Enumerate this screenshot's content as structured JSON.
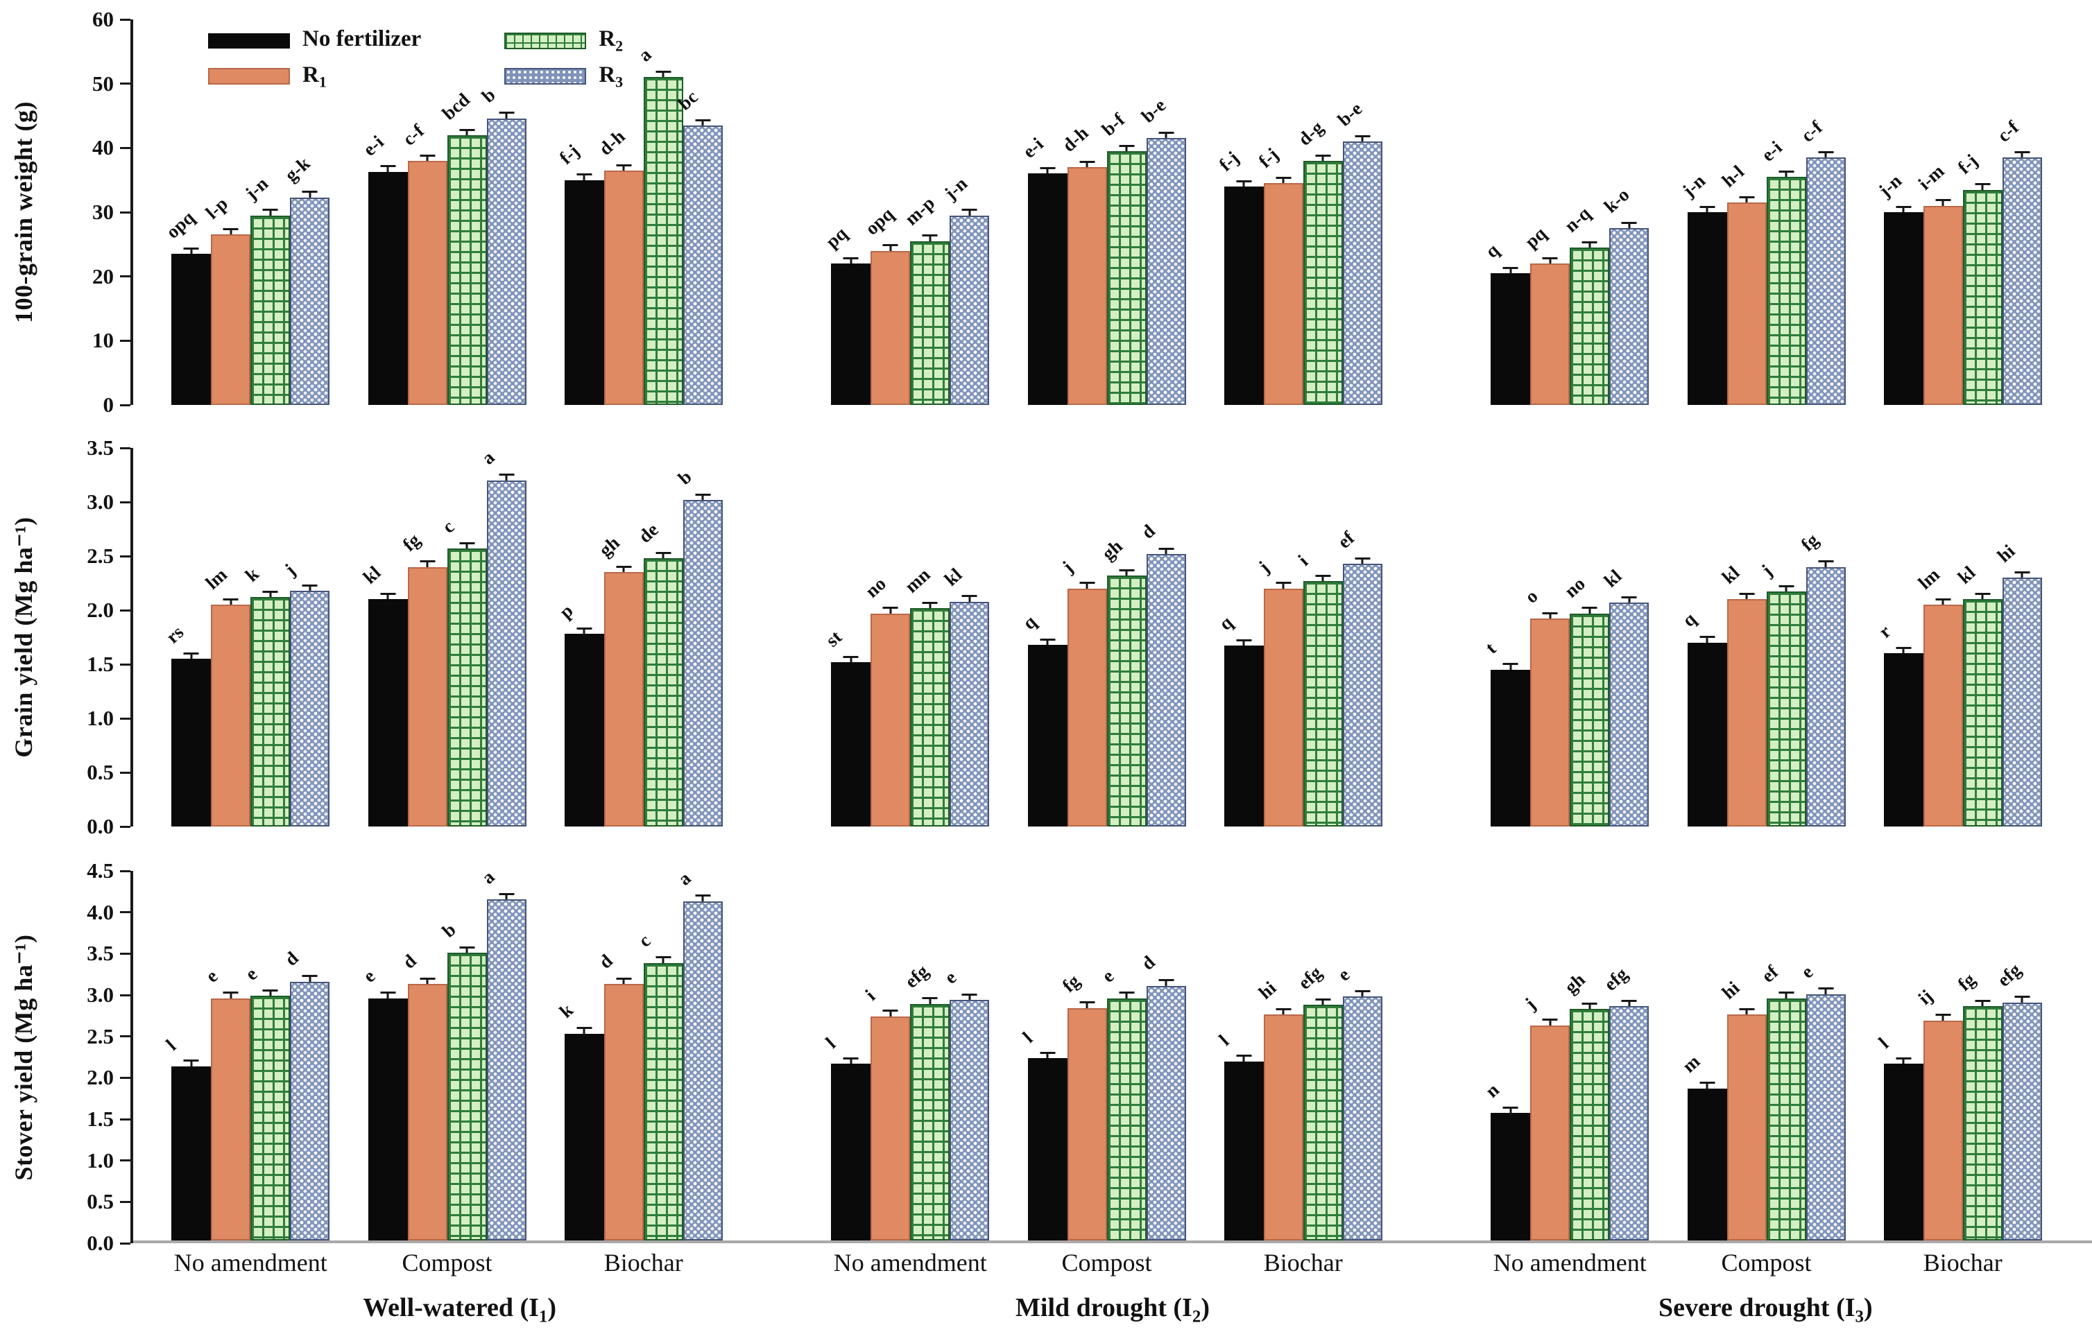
{
  "colors": {
    "black": "#0a0a0a",
    "salmon": "#e08a63",
    "salmon_border": "#b9684a",
    "green_fill": "#d4efc3",
    "green_line": "#2f7d3b",
    "green_border": "#1f5c2a",
    "blue_fill": "#8093ba",
    "blue_border": "#46557a",
    "axis": "#1a1a1a",
    "baseline": "#a9a9a9"
  },
  "legend": {
    "items": [
      {
        "base": "No fertilizer",
        "sub": ""
      },
      {
        "base": "R",
        "sub": "1"
      },
      {
        "base": "R",
        "sub": "2"
      },
      {
        "base": "R",
        "sub": "3"
      }
    ]
  },
  "x_axis": {
    "group_labels": [
      "No amendment",
      "Compost",
      "Biochar"
    ],
    "column_titles": [
      {
        "pre": "Well-watered (I",
        "sub": "1",
        "post": ")"
      },
      {
        "pre": "Mild drought (I",
        "sub": "2",
        "post": ")"
      },
      {
        "pre": "Severe drought (I",
        "sub": "3",
        "post": ")"
      }
    ]
  },
  "chart_data": {
    "type": "bar",
    "series": [
      "No fertilizer",
      "R1",
      "R2",
      "R3"
    ],
    "legend_position": "top-left of first panel",
    "grid": false,
    "rows": [
      {
        "ylabel": "100-grain weight (g)",
        "ylim": [
          0,
          60
        ],
        "err": 1.0,
        "yticks": [
          {
            "v": 0,
            "t": "0"
          },
          {
            "v": 10,
            "t": "10"
          },
          {
            "v": 20,
            "t": "20"
          },
          {
            "v": 30,
            "t": "30"
          },
          {
            "v": 40,
            "t": "40"
          },
          {
            "v": 50,
            "t": "50"
          },
          {
            "v": 60,
            "t": "60"
          }
        ],
        "panels": [
          {
            "irrigation": "Well-watered (I1)",
            "groups": [
              {
                "amendment": "No amendment",
                "values": [
                  23.5,
                  26.5,
                  29.5,
                  32.3
                ],
                "letters": [
                  "opq",
                  "l-p",
                  "j-n",
                  "g-k"
                ]
              },
              {
                "amendment": "Compost",
                "values": [
                  36.3,
                  38.0,
                  42.0,
                  44.6
                ],
                "letters": [
                  "e-i",
                  "c-f",
                  "bcd",
                  "b"
                ]
              },
              {
                "amendment": "Biochar",
                "values": [
                  35.0,
                  36.5,
                  51.0,
                  43.5
                ],
                "letters": [
                  "f-j",
                  "d-h",
                  "a",
                  "bc"
                ]
              }
            ]
          },
          {
            "irrigation": "Mild drought (I2)",
            "groups": [
              {
                "amendment": "No amendment",
                "values": [
                  22.0,
                  24.0,
                  25.5,
                  29.5
                ],
                "letters": [
                  "pq",
                  "opq",
                  "m-p",
                  "j-n"
                ]
              },
              {
                "amendment": "Compost",
                "values": [
                  36.0,
                  37.0,
                  39.5,
                  41.5
                ],
                "letters": [
                  "e-i",
                  "d-h",
                  "b-f",
                  "b-e"
                ]
              },
              {
                "amendment": "Biochar",
                "values": [
                  34.0,
                  34.5,
                  38.0,
                  41.0
                ],
                "letters": [
                  "f-j",
                  "f-j",
                  "d-g",
                  "b-e"
                ]
              }
            ]
          },
          {
            "irrigation": "Severe drought (I3)",
            "groups": [
              {
                "amendment": "No amendment",
                "values": [
                  20.5,
                  22.0,
                  24.5,
                  27.5
                ],
                "letters": [
                  "q",
                  "pq",
                  "n-q",
                  "k-o"
                ]
              },
              {
                "amendment": "Compost",
                "values": [
                  30.0,
                  31.5,
                  35.5,
                  38.5
                ],
                "letters": [
                  "j-n",
                  "h-l",
                  "e-i",
                  "c-f"
                ]
              },
              {
                "amendment": "Biochar",
                "values": [
                  30.0,
                  31.0,
                  33.5,
                  38.5
                ],
                "letters": [
                  "j-n",
                  "i-m",
                  "f-j",
                  "c-f"
                ]
              }
            ]
          }
        ]
      },
      {
        "ylabel": "Grain yield (Mg ha⁻¹)",
        "ylim": [
          0,
          3.5
        ],
        "err": 0.06,
        "yticks": [
          {
            "v": 0,
            "t": "0.0"
          },
          {
            "v": 0.5,
            "t": "0.5"
          },
          {
            "v": 1,
            "t": "1.0"
          },
          {
            "v": 1.5,
            "t": "1.5"
          },
          {
            "v": 2,
            "t": "2.0"
          },
          {
            "v": 2.5,
            "t": "2.5"
          },
          {
            "v": 3,
            "t": "3.0"
          },
          {
            "v": 3.5,
            "t": "3.5"
          }
        ],
        "panels": [
          {
            "irrigation": "Well-watered (I1)",
            "groups": [
              {
                "amendment": "No amendment",
                "values": [
                  1.55,
                  2.05,
                  2.12,
                  2.18
                ],
                "letters": [
                  "rs",
                  "lm",
                  "k",
                  "j"
                ]
              },
              {
                "amendment": "Compost",
                "values": [
                  2.1,
                  2.4,
                  2.57,
                  3.2
                ],
                "letters": [
                  "kl",
                  "fg",
                  "c",
                  "a"
                ]
              },
              {
                "amendment": "Biochar",
                "values": [
                  1.78,
                  2.35,
                  2.48,
                  3.02
                ],
                "letters": [
                  "p",
                  "gh",
                  "de",
                  "b"
                ]
              }
            ]
          },
          {
            "irrigation": "Mild drought (I2)",
            "groups": [
              {
                "amendment": "No amendment",
                "values": [
                  1.52,
                  1.97,
                  2.02,
                  2.08
                ],
                "letters": [
                  "st",
                  "no",
                  "mn",
                  "kl"
                ]
              },
              {
                "amendment": "Compost",
                "values": [
                  1.68,
                  2.2,
                  2.32,
                  2.52
                ],
                "letters": [
                  "q",
                  "j",
                  "gh",
                  "d"
                ]
              },
              {
                "amendment": "Biochar",
                "values": [
                  1.67,
                  2.2,
                  2.27,
                  2.43
                ],
                "letters": [
                  "q",
                  "j",
                  "i",
                  "ef"
                ]
              }
            ]
          },
          {
            "irrigation": "Severe drought (I3)",
            "groups": [
              {
                "amendment": "No amendment",
                "values": [
                  1.45,
                  1.92,
                  1.97,
                  2.07
                ],
                "letters": [
                  "t",
                  "o",
                  "no",
                  "kl"
                ]
              },
              {
                "amendment": "Compost",
                "values": [
                  1.7,
                  2.1,
                  2.17,
                  2.4
                ],
                "letters": [
                  "q",
                  "kl",
                  "j",
                  "fg"
                ]
              },
              {
                "amendment": "Biochar",
                "values": [
                  1.6,
                  2.05,
                  2.1,
                  2.3
                ],
                "letters": [
                  "r",
                  "lm",
                  "kl",
                  "hi"
                ]
              }
            ]
          }
        ]
      },
      {
        "ylabel": "Stover yield  (Mg ha⁻¹)",
        "ylim": [
          0,
          4.5
        ],
        "err": 0.08,
        "yticks": [
          {
            "v": 0,
            "t": "0.0"
          },
          {
            "v": 0.5,
            "t": "0.5"
          },
          {
            "v": 1,
            "t": "1.0"
          },
          {
            "v": 1.5,
            "t": "1.5"
          },
          {
            "v": 2,
            "t": "2.0"
          },
          {
            "v": 2.5,
            "t": "2.5"
          },
          {
            "v": 3,
            "t": "3.0"
          },
          {
            "v": 3.5,
            "t": "3.5"
          },
          {
            "v": 4,
            "t": "4.0"
          },
          {
            "v": 4.5,
            "t": "4.5"
          }
        ],
        "panels": [
          {
            "irrigation": "Well-watered (I1)",
            "groups": [
              {
                "amendment": "No amendment",
                "values": [
                  2.12,
                  2.95,
                  2.98,
                  3.15
                ],
                "letters": [
                  "l",
                  "e",
                  "e",
                  "d"
                ]
              },
              {
                "amendment": "Compost",
                "values": [
                  2.95,
                  3.12,
                  3.5,
                  4.15
                ],
                "letters": [
                  "e",
                  "d",
                  "b",
                  "a"
                ]
              },
              {
                "amendment": "Biochar",
                "values": [
                  2.52,
                  3.12,
                  3.38,
                  4.13
                ],
                "letters": [
                  "k",
                  "d",
                  "c",
                  "a"
                ]
              }
            ]
          },
          {
            "irrigation": "Mild drought (I2)",
            "groups": [
              {
                "amendment": "No amendment",
                "values": [
                  2.15,
                  2.73,
                  2.88,
                  2.93
                ],
                "letters": [
                  "l",
                  "i",
                  "efg",
                  "e"
                ]
              },
              {
                "amendment": "Compost",
                "values": [
                  2.22,
                  2.83,
                  2.95,
                  3.1
                ],
                "letters": [
                  "l",
                  "fg",
                  "e",
                  "d"
                ]
              },
              {
                "amendment": "Biochar",
                "values": [
                  2.18,
                  2.75,
                  2.87,
                  2.97
                ],
                "letters": [
                  "l",
                  "hi",
                  "efg",
                  "e"
                ]
              }
            ]
          },
          {
            "irrigation": "Severe drought (I3)",
            "groups": [
              {
                "amendment": "No amendment",
                "values": [
                  1.55,
                  2.62,
                  2.82,
                  2.85
                ],
                "letters": [
                  "n",
                  "j",
                  "gh",
                  "efg"
                ]
              },
              {
                "amendment": "Compost",
                "values": [
                  1.85,
                  2.75,
                  2.95,
                  3.0
                ],
                "letters": [
                  "m",
                  "hi",
                  "ef",
                  "e"
                ]
              },
              {
                "amendment": "Biochar",
                "values": [
                  2.15,
                  2.68,
                  2.85,
                  2.9
                ],
                "letters": [
                  "l",
                  "ij",
                  "fg",
                  "efg"
                ]
              }
            ]
          }
        ]
      }
    ]
  }
}
